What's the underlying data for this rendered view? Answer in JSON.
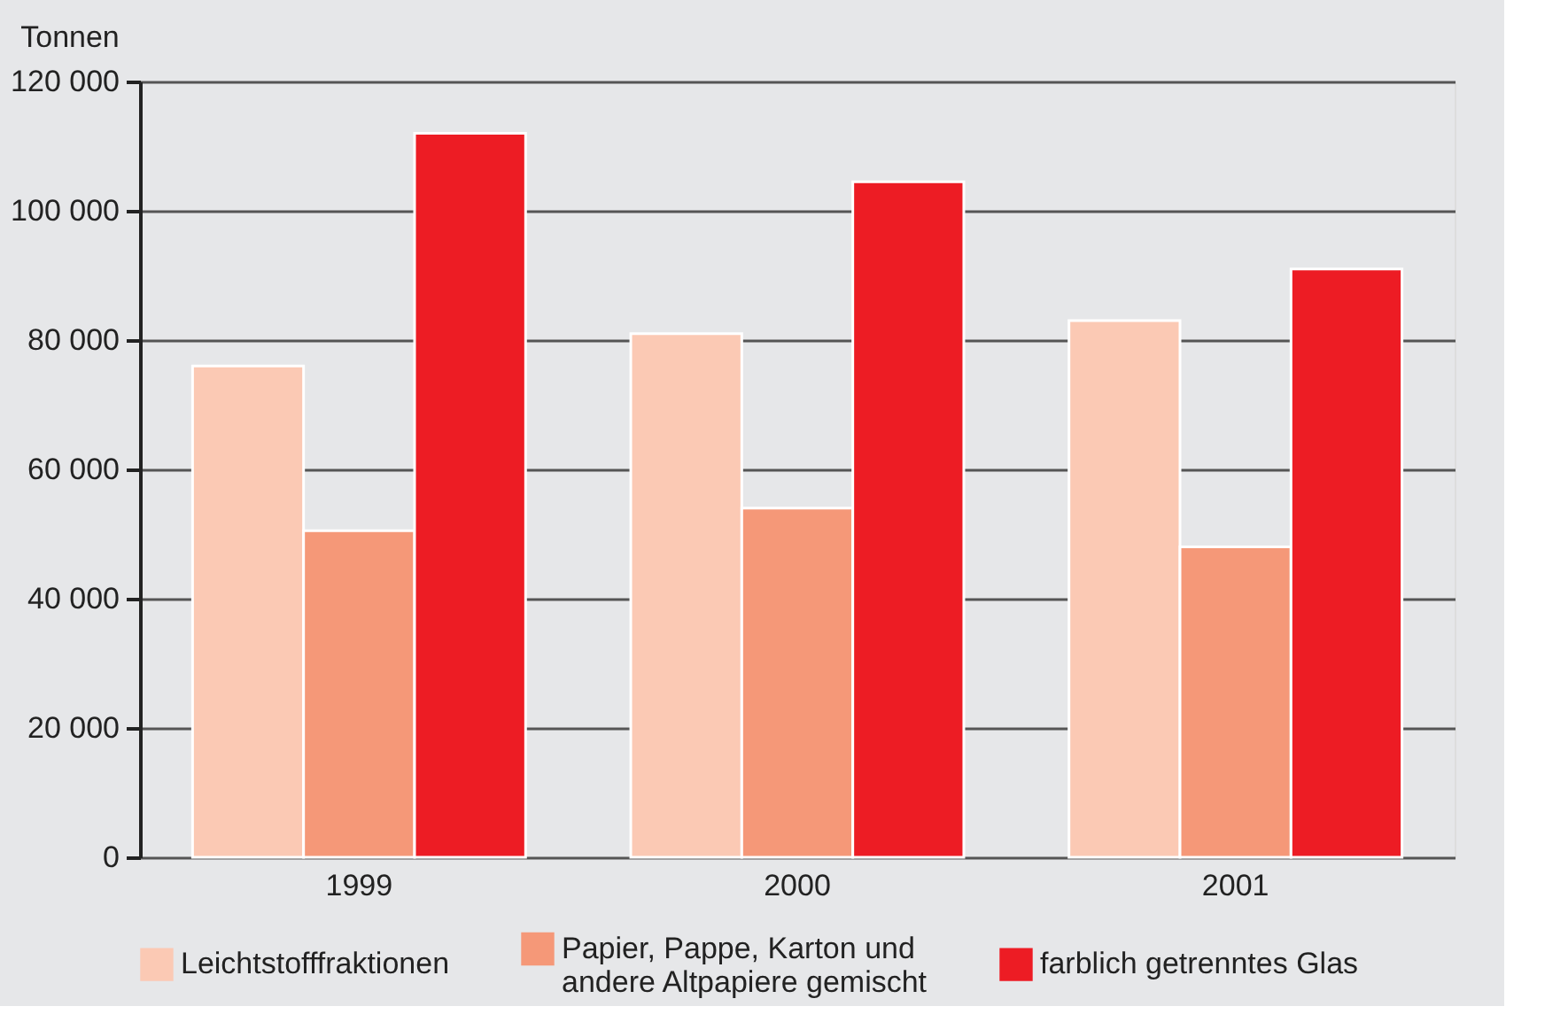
{
  "chart_data": {
    "type": "bar",
    "ylabel": "Tonnen",
    "categories": [
      "1999",
      "2000",
      "2001"
    ],
    "series": [
      {
        "name": "Leichtstofffraktionen",
        "color": "#fbc9b4",
        "values": [
          76000,
          81000,
          83000
        ]
      },
      {
        "name": "Papier, Pappe, Karton und\nandere Altpapiere gemischt",
        "color": "#f59878",
        "values": [
          50500,
          54000,
          48000
        ]
      },
      {
        "name": "farblich getrenntes Glas",
        "color": "#ed1c24",
        "values": [
          112000,
          104500,
          91000
        ]
      }
    ],
    "ylim": [
      0,
      120000
    ],
    "yticks": [
      0,
      {
        "value": 20000,
        "label": "20 000"
      },
      {
        "value": 40000,
        "label": "40 000"
      },
      {
        "value": 60000,
        "label": "60 000"
      },
      {
        "value": 80000,
        "label": "80 000"
      },
      {
        "value": 100000,
        "label": "100 000"
      },
      {
        "value": 120000,
        "label": "120 000"
      }
    ],
    "grid": "y",
    "legend": "bottom"
  }
}
